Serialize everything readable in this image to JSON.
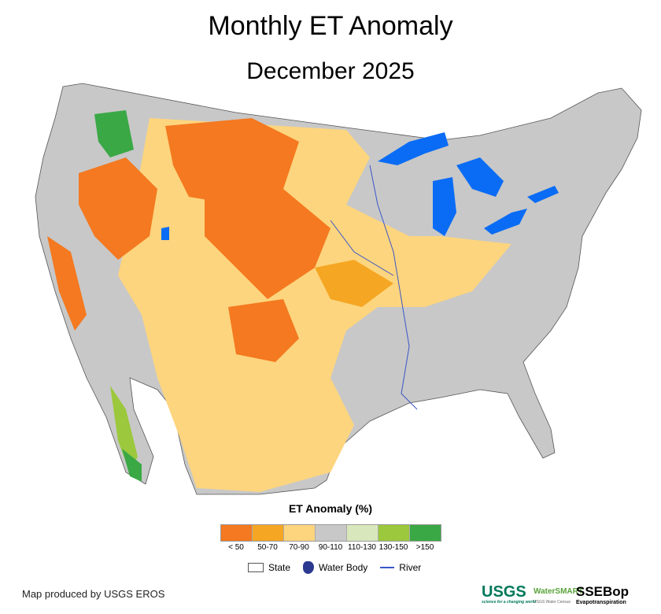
{
  "title": "Monthly ET Anomaly",
  "subtitle": "December 2025",
  "legend": {
    "title": "ET Anomaly (%)",
    "classes": [
      {
        "label": "< 50",
        "color": "#f47920"
      },
      {
        "label": "50-70",
        "color": "#f5a623"
      },
      {
        "label": "70-90",
        "color": "#fdd57e"
      },
      {
        "label": "90-110",
        "color": "#c8c8c8"
      },
      {
        "label": "110-130",
        "color": "#d9e8bc"
      },
      {
        "label": "130-150",
        "color": "#9bc83c"
      },
      {
        "label": ">150",
        "color": "#3aa845"
      }
    ],
    "state_label": "State",
    "water_label": "Water Body",
    "river_label": "River"
  },
  "credit": "Map produced by USGS EROS",
  "logos": {
    "usgs": "USGS",
    "usgs_tagline": "science for a changing world",
    "watersmart": "WaterSMART",
    "watersmart_sub": "USGS Water Census",
    "ssebop": "SSEBop",
    "ssebop_sub": "Evapotranspiration"
  },
  "water_color": "#0a6cf5"
}
